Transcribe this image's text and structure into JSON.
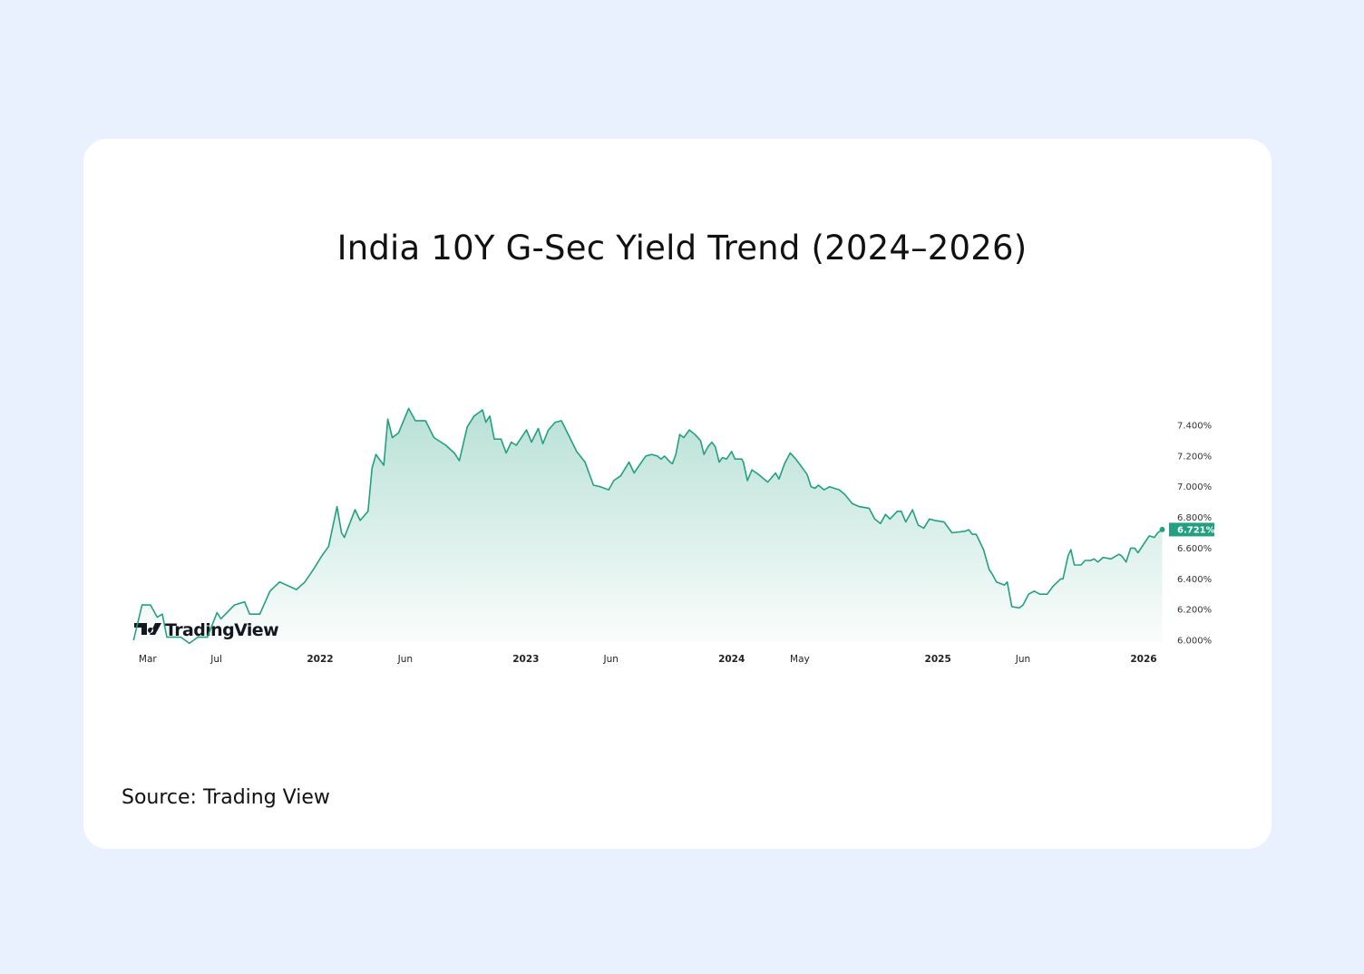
{
  "title": "India 10Y G-Sec Yield Trend (2024–2026)",
  "source": "Source: Trading View",
  "watermark": "TradingView",
  "colors": {
    "background": "#EAF1FE",
    "card": "#FFFFFF",
    "line": "#22A07F",
    "badge": "#22A07F"
  },
  "chart_data": {
    "type": "area",
    "title": "",
    "xlabel": "",
    "ylabel": "",
    "ylim": [
      6.0,
      7.51
    ],
    "grid": false,
    "y_ticks": [
      "6.000%",
      "6.200%",
      "6.400%",
      "6.600%",
      "6.800%",
      "7.000%",
      "7.200%",
      "7.400%"
    ],
    "y_tick_values": [
      6.0,
      6.2,
      6.4,
      6.6,
      6.8,
      7.0,
      7.2,
      7.4
    ],
    "x_ticks": [
      {
        "label": "Mar",
        "date": "2021-03-01",
        "year": false
      },
      {
        "label": "Jul",
        "date": "2021-07-01",
        "year": false
      },
      {
        "label": "2022",
        "date": "2022-01-01",
        "year": true
      },
      {
        "label": "Jun",
        "date": "2022-06-01",
        "year": false
      },
      {
        "label": "2023",
        "date": "2023-01-01",
        "year": true
      },
      {
        "label": "Jun",
        "date": "2023-06-01",
        "year": false
      },
      {
        "label": "2024",
        "date": "2024-01-01",
        "year": true
      },
      {
        "label": "May",
        "date": "2024-05-01",
        "year": false
      },
      {
        "label": "2025",
        "date": "2025-01-01",
        "year": true
      },
      {
        "label": "Jun",
        "date": "2025-06-01",
        "year": false
      },
      {
        "label": "2026",
        "date": "2026-01-01",
        "year": true
      }
    ],
    "last_value_label": "6.721%",
    "series": [
      {
        "x": [
          "2021-02-04",
          "2021-02-19",
          "2021-03-06",
          "2021-03-18",
          "2021-03-27",
          "2021-04-04",
          "2021-04-29",
          "2021-05-14",
          "2021-05-29",
          "2021-06-15",
          "2021-07-02",
          "2021-07-09",
          "2021-08-02",
          "2021-08-20",
          "2021-08-29",
          "2021-09-16",
          "2021-10-04",
          "2021-10-21",
          "2021-11-20",
          "2021-12-05",
          "2021-12-20",
          "2022-01-04",
          "2022-01-16",
          "2022-01-31",
          "2022-02-08",
          "2022-02-13",
          "2022-03-04",
          "2022-03-13",
          "2022-03-27",
          "2022-04-03",
          "2022-04-10",
          "2022-04-24",
          "2022-05-01",
          "2022-05-09",
          "2022-05-20",
          "2022-06-07",
          "2022-06-19",
          "2022-07-07",
          "2022-07-22",
          "2022-08-12",
          "2022-08-27",
          "2022-09-05",
          "2022-09-19",
          "2022-10-01",
          "2022-10-16",
          "2022-10-22",
          "2022-10-29",
          "2022-11-06",
          "2022-11-18",
          "2022-11-27",
          "2022-12-06",
          "2022-12-15",
          "2023-01-02",
          "2023-01-11",
          "2023-01-23",
          "2023-01-31",
          "2023-02-10",
          "2023-02-22",
          "2023-03-05",
          "2023-03-20",
          "2023-04-01",
          "2023-04-16",
          "2023-05-01",
          "2023-05-13",
          "2023-05-28",
          "2023-06-06",
          "2023-06-18",
          "2023-07-03",
          "2023-07-12",
          "2023-07-27",
          "2023-08-02",
          "2023-08-12",
          "2023-08-22",
          "2023-08-29",
          "2023-09-04",
          "2023-09-14",
          "2023-09-18",
          "2023-09-24",
          "2023-10-01",
          "2023-10-08",
          "2023-10-18",
          "2023-10-28",
          "2023-11-07",
          "2023-11-13",
          "2023-11-20",
          "2023-11-27",
          "2023-12-03",
          "2023-12-10",
          "2023-12-16",
          "2023-12-23",
          "2024-01-01",
          "2024-01-07",
          "2024-01-19",
          "2024-01-22",
          "2024-01-29",
          "2024-02-06",
          "2024-02-18",
          "2024-03-05",
          "2024-03-19",
          "2024-03-25",
          "2024-04-04",
          "2024-04-14",
          "2024-04-24",
          "2024-05-04",
          "2024-05-14",
          "2024-05-21",
          "2024-05-28",
          "2024-06-03",
          "2024-06-13",
          "2024-06-23",
          "2024-07-10",
          "2024-07-20",
          "2024-08-02",
          "2024-08-15",
          "2024-09-01",
          "2024-09-11",
          "2024-09-21",
          "2024-09-30",
          "2024-10-08",
          "2024-10-21",
          "2024-10-28",
          "2024-11-05",
          "2024-11-17",
          "2024-11-27",
          "2024-12-07",
          "2024-12-17",
          "2024-12-27",
          "2025-01-12",
          "2025-01-26",
          "2025-02-18",
          "2025-02-25",
          "2025-03-03",
          "2025-03-10",
          "2025-03-23",
          "2025-04-02",
          "2025-04-06",
          "2025-04-15",
          "2025-04-29",
          "2025-05-04",
          "2025-05-12",
          "2025-05-25",
          "2025-06-01",
          "2025-06-11",
          "2025-06-21",
          "2025-07-01",
          "2025-07-14",
          "2025-07-24",
          "2025-08-07",
          "2025-08-11",
          "2025-08-20",
          "2025-08-25",
          "2025-08-31",
          "2025-09-12",
          "2025-09-19",
          "2025-09-29",
          "2025-10-05",
          "2025-10-12",
          "2025-10-21",
          "2025-11-04",
          "2025-11-18",
          "2025-11-23",
          "2025-12-01",
          "2025-12-09",
          "2025-12-16",
          "2025-12-22",
          "2025-12-31",
          "2026-01-11",
          "2026-01-20",
          "2026-01-26",
          "2026-02-03"
        ],
        "y": [
          6.0,
          6.23,
          6.23,
          6.15,
          6.17,
          6.02,
          6.02,
          5.98,
          6.02,
          6.02,
          6.18,
          6.14,
          6.23,
          6.25,
          6.17,
          6.17,
          6.32,
          6.38,
          6.33,
          6.38,
          6.46,
          6.55,
          6.61,
          6.87,
          6.7,
          6.67,
          6.85,
          6.78,
          6.84,
          7.12,
          7.21,
          7.14,
          7.44,
          7.32,
          7.35,
          7.51,
          7.43,
          7.43,
          7.32,
          7.27,
          7.22,
          7.17,
          7.39,
          7.46,
          7.5,
          7.42,
          7.46,
          7.31,
          7.31,
          7.22,
          7.29,
          7.27,
          7.37,
          7.29,
          7.38,
          7.28,
          7.37,
          7.42,
          7.43,
          7.32,
          7.23,
          7.16,
          7.01,
          7.0,
          6.98,
          7.04,
          7.07,
          7.16,
          7.09,
          7.17,
          7.2,
          7.21,
          7.2,
          7.18,
          7.2,
          7.16,
          7.15,
          7.21,
          7.34,
          7.32,
          7.37,
          7.34,
          7.3,
          7.21,
          7.26,
          7.29,
          7.26,
          7.16,
          7.19,
          7.18,
          7.23,
          7.18,
          7.18,
          7.16,
          7.04,
          7.11,
          7.08,
          7.03,
          7.09,
          7.05,
          7.15,
          7.22,
          7.18,
          7.13,
          7.08,
          7.0,
          6.99,
          7.01,
          6.98,
          7.0,
          6.98,
          6.95,
          6.89,
          6.87,
          6.86,
          6.79,
          6.76,
          6.82,
          6.79,
          6.84,
          6.84,
          6.77,
          6.85,
          6.75,
          6.73,
          6.79,
          6.78,
          6.77,
          6.7,
          6.71,
          6.72,
          6.69,
          6.69,
          6.59,
          6.46,
          6.44,
          6.38,
          6.36,
          6.38,
          6.22,
          6.21,
          6.23,
          6.3,
          6.32,
          6.3,
          6.3,
          6.35,
          6.4,
          6.4,
          6.55,
          6.59,
          6.49,
          6.49,
          6.52,
          6.52,
          6.53,
          6.51,
          6.54,
          6.53,
          6.56,
          6.55,
          6.51,
          6.6,
          6.6,
          6.57,
          6.62,
          6.68,
          6.67,
          6.7,
          6.721
        ]
      }
    ]
  }
}
